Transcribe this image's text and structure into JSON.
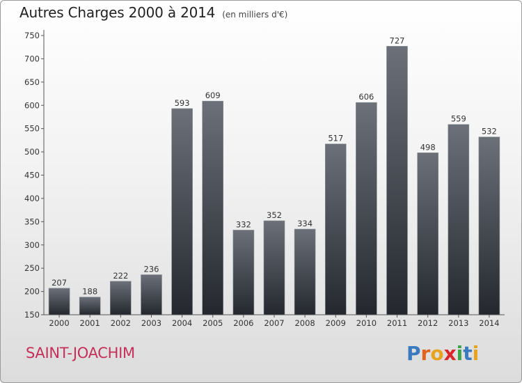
{
  "header": {
    "title": "Autres Charges 2000 à 2014",
    "subtitle": "(en milliers d'€)"
  },
  "footer": {
    "commune": "SAINT-JOACHIM",
    "logo_text": "Proxiti"
  },
  "colors": {
    "commune_text": "#c4305a",
    "bar_top": "#6b7079",
    "bar_bottom": "#24282e",
    "logo_letters": [
      "#3a7bbf",
      "#e0641e",
      "#e7a31d",
      "#d8262b",
      "#3aa546",
      "#3a7bbf",
      "#e7a31d"
    ]
  },
  "chart_data": {
    "type": "bar",
    "title": "Autres Charges 2000 à 2014",
    "subtitle": "(en milliers d'€)",
    "categories": [
      "2000",
      "2001",
      "2002",
      "2003",
      "2004",
      "2005",
      "2006",
      "2007",
      "2008",
      "2009",
      "2010",
      "2011",
      "2012",
      "2013",
      "2014"
    ],
    "values": [
      207,
      188,
      222,
      236,
      593,
      609,
      332,
      352,
      334,
      517,
      606,
      727,
      498,
      559,
      532
    ],
    "ylim": [
      150,
      750
    ],
    "yticks": [
      150,
      200,
      250,
      300,
      350,
      400,
      450,
      500,
      550,
      600,
      650,
      700,
      750
    ],
    "grid": false,
    "legend": "none"
  }
}
